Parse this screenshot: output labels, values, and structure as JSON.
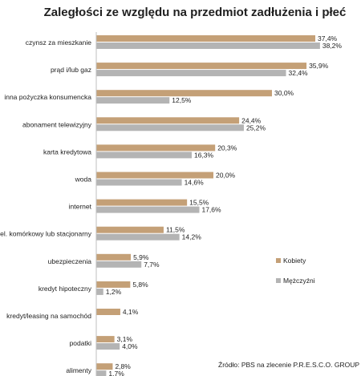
{
  "chart_data": {
    "type": "bar",
    "orientation": "horizontal",
    "title": "Zaległości ze względu na przedmiot zadłużenia i płeć",
    "categories": [
      "czynsz za mieszkanie",
      "prąd i/lub gaz",
      "inna pożyczka konsumencka",
      "abonament telewizyjny",
      "karta kredytowa",
      "woda",
      "internet",
      "tel. komórkowy lub stacjonarny",
      "ubezpieczenia",
      "kredyt hipoteczny",
      "kredyt/leasing na samochód",
      "podatki",
      "alimenty"
    ],
    "series": [
      {
        "name": "Kobiety",
        "color": "#c4a077",
        "values": [
          37.4,
          35.9,
          30.0,
          24.4,
          20.3,
          20.0,
          15.5,
          11.5,
          5.9,
          5.8,
          4.1,
          3.1,
          2.8
        ],
        "labels": [
          "37,4%",
          "35,9%",
          "30,0%",
          "24,4%",
          "20,3%",
          "20,0%",
          "15,5%",
          "11,5%",
          "5,9%",
          "5,8%",
          "4,1%",
          "3,1%",
          "2,8%"
        ]
      },
      {
        "name": "Mężczyźni",
        "color": "#b4b4b4",
        "values": [
          38.2,
          32.4,
          12.5,
          25.2,
          16.3,
          14.6,
          17.6,
          14.2,
          7.7,
          1.2,
          null,
          4.0,
          1.7
        ],
        "labels": [
          "38,2%",
          "32,4%",
          "12,5%",
          "25,2%",
          "16,3%",
          "14,6%",
          "17,6%",
          "14,2%",
          "7,7%",
          "1,2%",
          "",
          "4,0%",
          "1,7%"
        ]
      }
    ],
    "xlim": [
      0,
      40
    ],
    "legend": "right",
    "grid": false,
    "source": "Źródło: PBS na zlecenie P.R.E.S.C.O. GROUP"
  }
}
